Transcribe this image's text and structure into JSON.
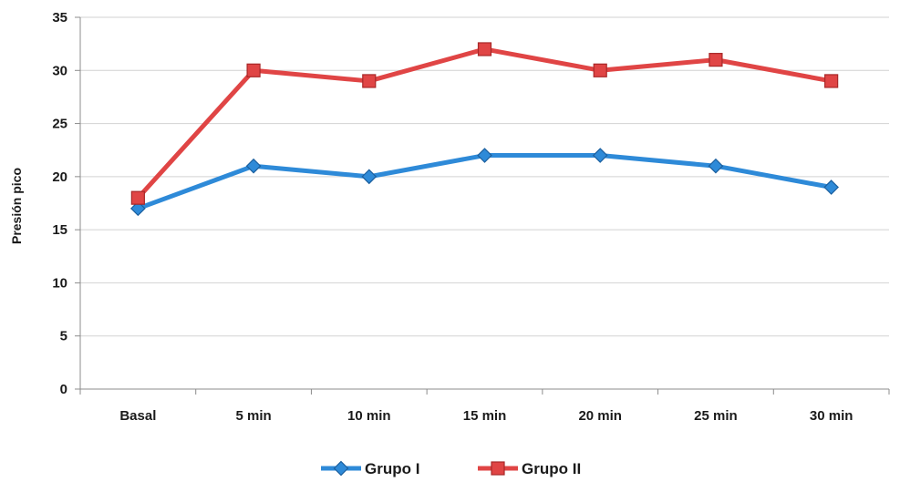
{
  "chart_data": {
    "type": "line",
    "title": "",
    "xlabel": "",
    "ylabel": "Presión pico",
    "categories": [
      "Basal",
      "5 min",
      "10 min",
      "15 min",
      "20 min",
      "25 min",
      "30 min"
    ],
    "ylim": [
      0,
      35
    ],
    "yticks": [
      0,
      5,
      10,
      15,
      20,
      25,
      30,
      35
    ],
    "grid": true,
    "legend_position": "bottom",
    "series": [
      {
        "name": "Grupo I",
        "values": [
          17,
          21,
          20,
          22,
          22,
          21,
          19
        ],
        "color": "#2e8ad8",
        "marker": "diamond"
      },
      {
        "name": "Grupo II",
        "values": [
          18,
          30,
          29,
          32,
          30,
          31,
          29
        ],
        "color": "#e04545",
        "marker": "square"
      }
    ]
  }
}
